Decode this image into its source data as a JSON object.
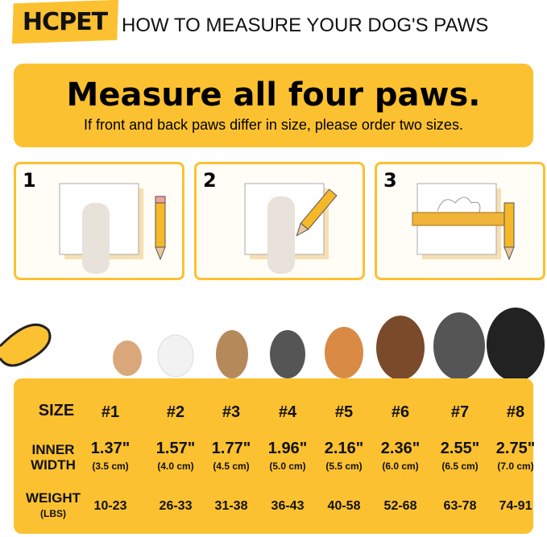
{
  "header": {
    "logo": "HCPET",
    "title": "HOW TO MEASURE YOUR DOG'S PAWS"
  },
  "banner": {
    "headline": "Measure all four paws.",
    "subtitle": "If front and back paws differ in size, please order two sizes."
  },
  "steps": [
    {
      "number": "1"
    },
    {
      "number": "2"
    },
    {
      "number": "3"
    }
  ],
  "colors": {
    "accent": "#fcc131"
  },
  "size_table": {
    "labels": {
      "size": "SIZE",
      "inner_width_1": "INNER",
      "inner_width_2": "WIDTH",
      "weight": "WEIGHT",
      "weight_unit": "(LBS)"
    },
    "columns": [
      {
        "size": "#1",
        "inch": "1.37\"",
        "cm": "(3.5 cm)",
        "weight": "10-23"
      },
      {
        "size": "#2",
        "inch": "1.57\"",
        "cm": "(4.0 cm)",
        "weight": "26-33"
      },
      {
        "size": "#3",
        "inch": "1.77\"",
        "cm": "(4.5 cm)",
        "weight": "31-38"
      },
      {
        "size": "#4",
        "inch": "1.96\"",
        "cm": "(5.0 cm)",
        "weight": "36-43"
      },
      {
        "size": "#5",
        "inch": "2.16\"",
        "cm": "(5.5 cm)",
        "weight": "40-58"
      },
      {
        "size": "#6",
        "inch": "2.36\"",
        "cm": "(6.0 cm)",
        "weight": "52-68"
      },
      {
        "size": "#7",
        "inch": "2.55\"",
        "cm": "(6.5 cm)",
        "weight": "63-78"
      },
      {
        "size": "#8",
        "inch": "2.75\"",
        "cm": "(7.0 cm)",
        "weight": "74-91"
      }
    ]
  }
}
